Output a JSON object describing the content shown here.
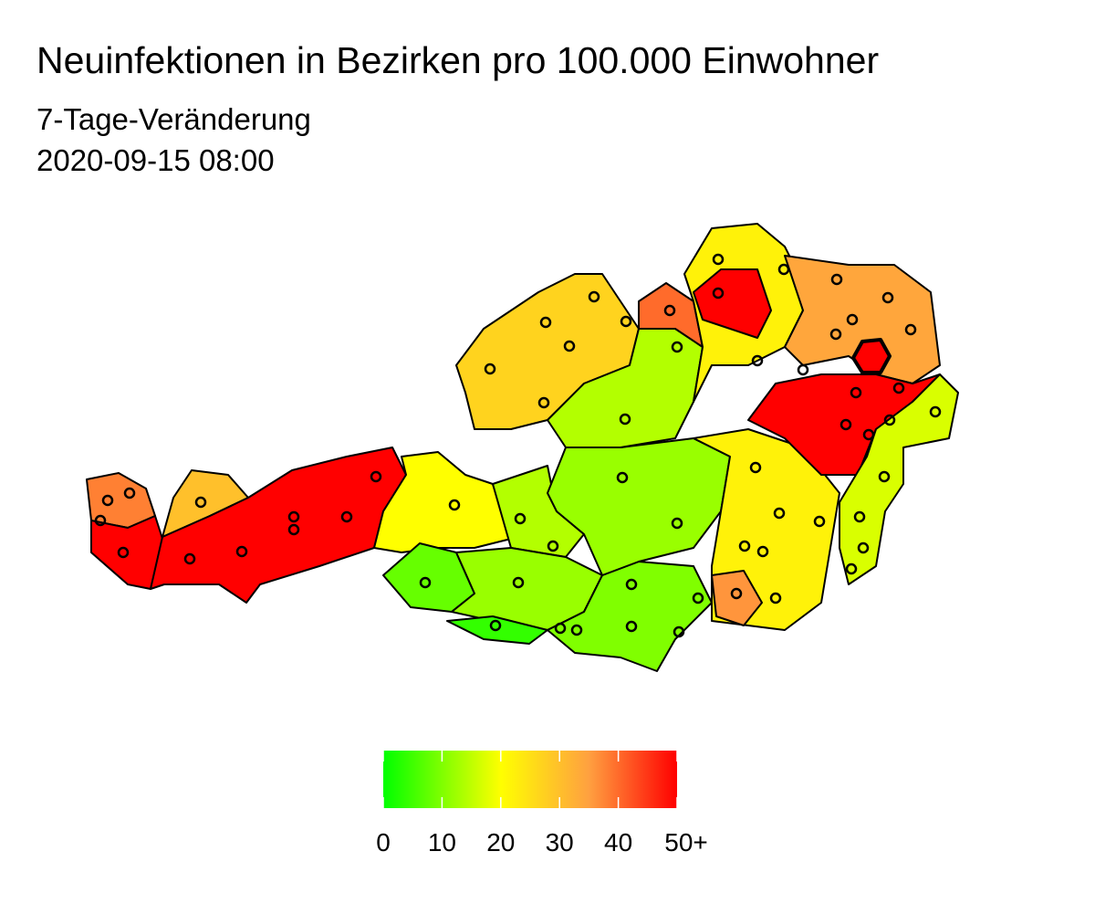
{
  "title": "Neuinfektionen in Bezirken pro 100.000 Einwohner",
  "subtitle": [
    "7-Tage-Veränderung",
    "2020-09-15 08:00"
  ],
  "legend": {
    "lim": [
      0,
      50
    ],
    "ticks": [
      0,
      10,
      20,
      30,
      40,
      {
        "value": 50,
        "label": "50+"
      }
    ],
    "stops": [
      [
        0,
        "#00ff00"
      ],
      [
        20,
        "#ffff00"
      ],
      [
        35,
        "#ffa040"
      ],
      [
        50,
        "#ff0000"
      ]
    ]
  },
  "district_values": [
    38,
    50,
    30,
    50,
    20,
    14,
    8,
    12,
    4,
    10,
    12,
    22,
    27,
    14,
    40,
    22,
    50,
    34,
    50,
    17,
    50,
    36
  ]
}
